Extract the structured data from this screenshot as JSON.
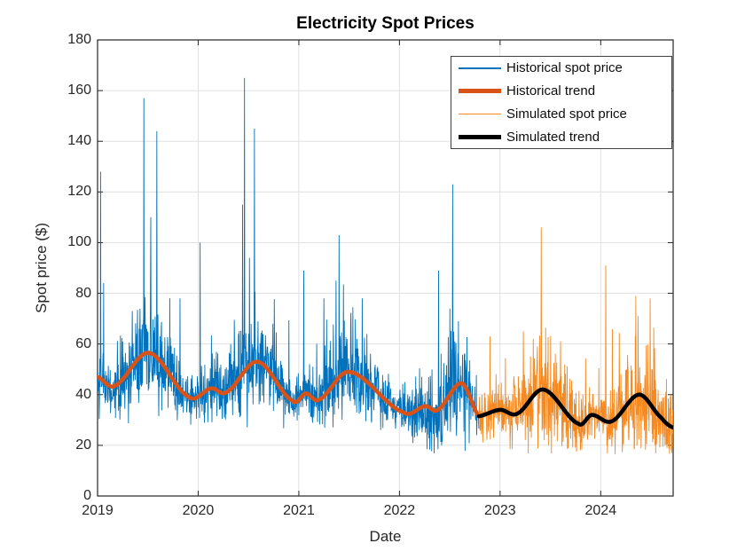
{
  "figure": {
    "title": "Electricity Spot Prices",
    "xlabel": "Date",
    "ylabel": "Spot price ($)"
  },
  "chart_data": {
    "type": "line",
    "title": "Electricity Spot Prices",
    "xlabel": "Date",
    "ylabel": "Spot price ($)",
    "xlim": [
      2019.0,
      2024.72
    ],
    "ylim": [
      0,
      180
    ],
    "xticks": [
      2019,
      2020,
      2021,
      2022,
      2023,
      2024
    ],
    "yticks": [
      0,
      20,
      40,
      60,
      80,
      100,
      120,
      140,
      160,
      180
    ],
    "grid": true,
    "grid_color": "#E0E0E0",
    "axis_color": "#262626",
    "background": "#FFFFFF",
    "legend": {
      "position": "top-right",
      "entries": [
        {
          "label": "Historical spot price",
          "color": "#0072BD",
          "sample_thickness": 1.6
        },
        {
          "label": "Historical trend",
          "color": "#D95319",
          "sample_thickness": 5
        },
        {
          "label": "Simulated spot price",
          "color": "#F5881F",
          "sample_thickness": 1.6
        },
        {
          "label": "Simulated trend",
          "color": "#000000",
          "sample_thickness": 5
        }
      ]
    },
    "series": [
      {
        "name": "Historical spot price",
        "type": "noisy_daily",
        "color": "#0072BD",
        "line_width": 0.9,
        "x_start": 2019.0,
        "x_end": 2022.79,
        "trend_ref": "Historical trend",
        "noise_sigma": 7.5,
        "min_value": 16.5,
        "spikes": [
          [
            2019.03,
            128
          ],
          [
            2019.06,
            84
          ],
          [
            2019.46,
            157
          ],
          [
            2019.53,
            110
          ],
          [
            2019.59,
            144
          ],
          [
            2019.82,
            78
          ],
          [
            2020.02,
            100
          ],
          [
            2020.44,
            115
          ],
          [
            2020.46,
            165
          ],
          [
            2020.51,
            94
          ],
          [
            2020.56,
            145
          ],
          [
            2021.05,
            89
          ],
          [
            2021.25,
            78
          ],
          [
            2021.37,
            85
          ],
          [
            2021.4,
            103
          ],
          [
            2021.63,
            78
          ],
          [
            2022.39,
            89
          ],
          [
            2022.5,
            74
          ],
          [
            2022.53,
            123
          ]
        ]
      },
      {
        "name": "Historical trend",
        "type": "smooth",
        "color": "#D95319",
        "line_width": 4.5,
        "points": [
          [
            2019.0,
            47.0
          ],
          [
            2019.17,
            43.5
          ],
          [
            2019.51,
            56.5
          ],
          [
            2019.91,
            39.0
          ],
          [
            2020.13,
            42.5
          ],
          [
            2020.28,
            41.0
          ],
          [
            2020.59,
            53.0
          ],
          [
            2020.94,
            37.5
          ],
          [
            2021.07,
            40.5
          ],
          [
            2021.2,
            38.0
          ],
          [
            2021.5,
            49.0
          ],
          [
            2022.04,
            33.0
          ],
          [
            2022.26,
            35.5
          ],
          [
            2022.38,
            34.0
          ],
          [
            2022.62,
            44.5
          ],
          [
            2022.79,
            31.5
          ]
        ]
      },
      {
        "name": "Simulated spot price",
        "type": "noisy_daily",
        "color": "#F5881F",
        "line_width": 0.9,
        "x_start": 2022.79,
        "x_end": 2024.72,
        "trend_ref": "Simulated trend",
        "noise_sigma": 7.5,
        "min_value": 16.5,
        "spikes": [
          [
            2022.9,
            63
          ],
          [
            2023.23,
            65
          ],
          [
            2023.33,
            62
          ],
          [
            2023.41,
            106
          ],
          [
            2023.6,
            61
          ],
          [
            2024.05,
            91
          ],
          [
            2024.35,
            79
          ],
          [
            2024.37,
            71
          ],
          [
            2024.49,
            78
          ]
        ]
      },
      {
        "name": "Simulated trend",
        "type": "smooth",
        "color": "#000000",
        "line_width": 4.5,
        "points": [
          [
            2022.79,
            31.5
          ],
          [
            2023.0,
            34.0
          ],
          [
            2023.17,
            32.5
          ],
          [
            2023.43,
            42.0
          ],
          [
            2023.78,
            28.5
          ],
          [
            2023.91,
            32.0
          ],
          [
            2024.11,
            29.5
          ],
          [
            2024.38,
            40.0
          ],
          [
            2024.6,
            31.0
          ],
          [
            2024.72,
            27.0
          ]
        ]
      }
    ],
    "noise_seed": 42
  }
}
